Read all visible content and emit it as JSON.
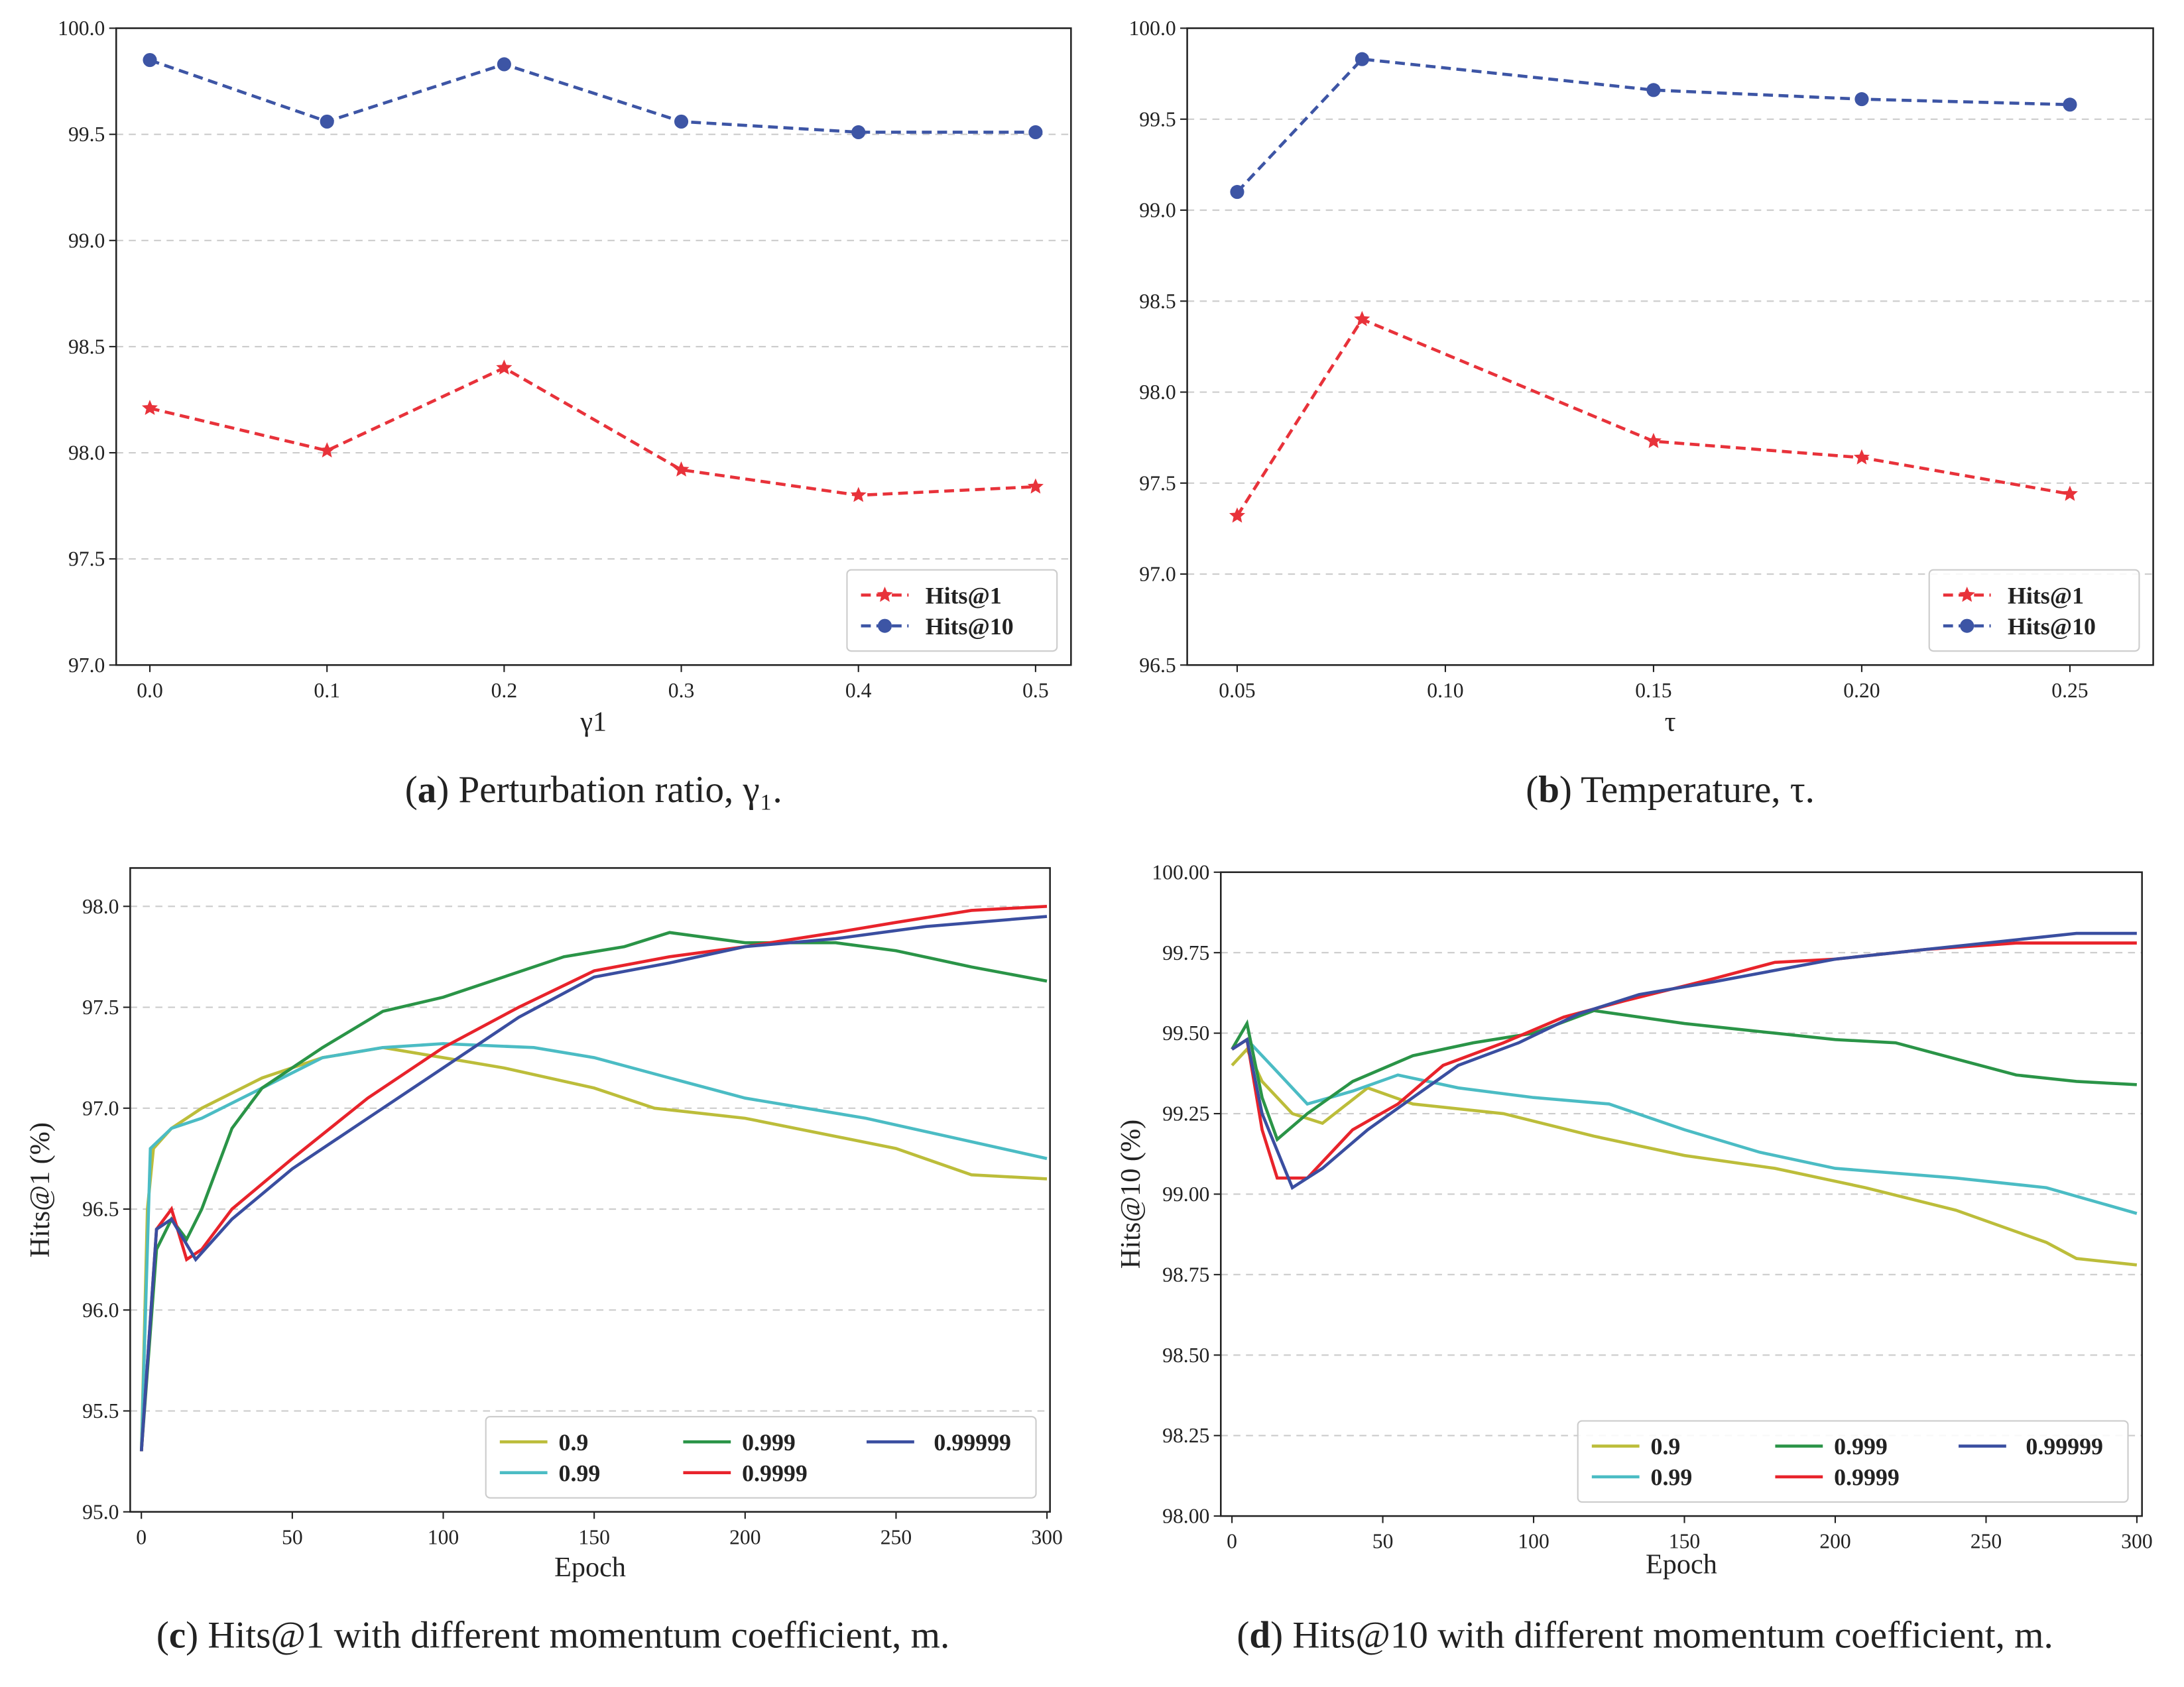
{
  "chart_data": [
    {
      "type": "line",
      "xlabel": "γ1",
      "ylabel": "",
      "ylim": [
        97.0,
        100.0
      ],
      "xlim": [
        -0.019,
        0.52
      ],
      "xticks": [
        "0.0",
        "0.1",
        "0.2",
        "0.3",
        "0.4",
        "0.5"
      ],
      "xtick_values": [
        0,
        0.1,
        0.2,
        0.3,
        0.4,
        0.5
      ],
      "yticks": [
        "97.0",
        "97.5",
        "98.0",
        "98.5",
        "99.0",
        "99.5",
        "100.0"
      ],
      "ytick_values": [
        97,
        97.5,
        98,
        98.5,
        99,
        99.5,
        100
      ],
      "grid": true,
      "legend": "bottom-right",
      "legend_cols": 1,
      "caption_label": "a",
      "caption_text": " Perturbation ratio, γ₁.",
      "series": [
        {
          "name": "Hits@1",
          "color": "#e8323a",
          "marker": "star",
          "dashed": true,
          "x": [
            0,
            0.1,
            0.2,
            0.3,
            0.4,
            0.5
          ],
          "y": [
            98.21,
            98.01,
            98.4,
            97.92,
            97.8,
            97.84
          ]
        },
        {
          "name": "Hits@10",
          "color": "#3d55a5",
          "marker": "circle",
          "dashed": true,
          "x": [
            0,
            0.1,
            0.2,
            0.3,
            0.4,
            0.5
          ],
          "y": [
            99.85,
            99.56,
            99.83,
            99.56,
            99.51,
            99.51
          ]
        }
      ]
    },
    {
      "type": "line",
      "xlabel": "τ",
      "ylabel": "",
      "ylim": [
        96.5,
        100.0
      ],
      "xlim": [
        0.038,
        0.27
      ],
      "xticks": [
        "0.05",
        "0.10",
        "0.15",
        "0.20",
        "0.25"
      ],
      "xtick_values": [
        0.05,
        0.1,
        0.15,
        0.2,
        0.25
      ],
      "yticks": [
        "96.5",
        "97.0",
        "97.5",
        "98.0",
        "98.5",
        "99.0",
        "99.5",
        "100.0"
      ],
      "ytick_values": [
        96.5,
        97,
        97.5,
        98,
        98.5,
        99,
        99.5,
        100
      ],
      "grid": true,
      "legend": "bottom-right",
      "legend_cols": 1,
      "caption_label": "b",
      "caption_text": " Temperature, τ.",
      "series": [
        {
          "name": "Hits@1",
          "color": "#e8323a",
          "marker": "star",
          "dashed": true,
          "x": [
            0.05,
            0.08,
            0.15,
            0.2,
            0.25
          ],
          "y": [
            97.32,
            98.4,
            97.73,
            97.64,
            97.44
          ]
        },
        {
          "name": "Hits@10",
          "color": "#3d55a5",
          "marker": "circle",
          "dashed": true,
          "x": [
            0.05,
            0.08,
            0.15,
            0.2,
            0.25
          ],
          "y": [
            99.1,
            99.83,
            99.66,
            99.61,
            99.58
          ]
        }
      ]
    },
    {
      "type": "line",
      "xlabel": "Epoch",
      "ylabel": "Hits@1 (%)",
      "ylim": [
        95.0,
        98.19
      ],
      "xlim": [
        -3.7,
        301
      ],
      "xticks": [
        "0",
        "50",
        "100",
        "150",
        "200",
        "250",
        "300"
      ],
      "xtick_values": [
        0,
        50,
        100,
        150,
        200,
        250,
        300
      ],
      "yticks": [
        "95.0",
        "95.5",
        "96.0",
        "96.5",
        "97.0",
        "97.5",
        "98.0"
      ],
      "ytick_values": [
        95,
        95.5,
        96,
        96.5,
        97,
        97.5,
        98
      ],
      "grid": true,
      "legend": "bottom-right",
      "legend_cols": 3,
      "caption_label": "c",
      "caption_text": " Hits@1 with different momentum coefficient, m.",
      "series": [
        {
          "name": "0.9",
          "color": "#bcbd3a",
          "x": [
            0,
            2,
            4,
            10,
            20,
            40,
            60,
            80,
            100,
            120,
            150,
            170,
            200,
            250,
            275,
            300
          ],
          "y": [
            95.3,
            96.5,
            96.8,
            96.9,
            97.0,
            97.15,
            97.25,
            97.3,
            97.25,
            97.2,
            97.1,
            97.0,
            96.95,
            96.8,
            96.67,
            96.65
          ]
        },
        {
          "name": "0.99",
          "color": "#4bbcc4",
          "x": [
            0,
            3,
            10,
            20,
            40,
            60,
            80,
            100,
            130,
            150,
            175,
            200,
            240,
            270,
            300
          ],
          "y": [
            95.3,
            96.8,
            96.9,
            96.95,
            97.1,
            97.25,
            97.3,
            97.32,
            97.3,
            97.25,
            97.15,
            97.05,
            96.95,
            96.85,
            96.75
          ]
        },
        {
          "name": "0.999",
          "color": "#2a9447",
          "x": [
            0,
            5,
            10,
            15,
            20,
            30,
            40,
            60,
            80,
            100,
            120,
            140,
            160,
            175,
            200,
            230,
            250,
            275,
            300
          ],
          "y": [
            95.3,
            96.3,
            96.45,
            96.35,
            96.5,
            96.9,
            97.1,
            97.3,
            97.48,
            97.55,
            97.65,
            97.75,
            97.8,
            97.87,
            97.82,
            97.82,
            97.78,
            97.7,
            97.63
          ]
        },
        {
          "name": "0.9999",
          "color": "#e8232b",
          "x": [
            0,
            5,
            10,
            15,
            20,
            30,
            50,
            75,
            100,
            125,
            150,
            175,
            200,
            230,
            250,
            275,
            300
          ],
          "y": [
            95.3,
            96.4,
            96.5,
            96.25,
            96.3,
            96.5,
            96.75,
            97.05,
            97.3,
            97.5,
            97.68,
            97.75,
            97.8,
            97.87,
            97.92,
            97.98,
            98.0
          ]
        },
        {
          "name": "0.99999",
          "color": "#3a4ea0",
          "x": [
            0,
            5,
            10,
            18,
            30,
            50,
            75,
            100,
            125,
            150,
            175,
            200,
            230,
            260,
            300
          ],
          "y": [
            95.3,
            96.4,
            96.45,
            96.25,
            96.45,
            96.7,
            96.95,
            97.2,
            97.45,
            97.65,
            97.72,
            97.8,
            97.84,
            97.9,
            97.95
          ]
        }
      ]
    },
    {
      "type": "line",
      "xlabel": "Epoch",
      "ylabel": "Hits@10 (%)",
      "ylim": [
        98.0,
        100.0
      ],
      "xlim": [
        -3.7,
        301.7
      ],
      "xticks": [
        "0",
        "50",
        "100",
        "150",
        "200",
        "250",
        "300"
      ],
      "xtick_values": [
        0,
        50,
        100,
        150,
        200,
        250,
        300
      ],
      "yticks": [
        "98.00",
        "98.25",
        "98.50",
        "98.75",
        "99.00",
        "99.25",
        "99.50",
        "99.75",
        "100.00"
      ],
      "ytick_values": [
        98,
        98.25,
        98.5,
        98.75,
        99,
        99.25,
        99.5,
        99.75,
        100
      ],
      "grid": true,
      "legend": "bottom-right",
      "legend_cols": 3,
      "caption_label": "d",
      "caption_text": " Hits@10 with different momentum coefficient, m.",
      "series": [
        {
          "name": "0.9",
          "color": "#bcbd3a",
          "x": [
            0,
            5,
            10,
            20,
            30,
            45,
            60,
            90,
            120,
            150,
            180,
            210,
            240,
            270,
            280,
            300
          ],
          "y": [
            99.4,
            99.45,
            99.35,
            99.25,
            99.22,
            99.33,
            99.28,
            99.25,
            99.18,
            99.12,
            99.08,
            99.02,
            98.95,
            98.85,
            98.8,
            98.78
          ]
        },
        {
          "name": "0.99",
          "color": "#4bbcc4",
          "x": [
            0,
            5,
            15,
            25,
            40,
            55,
            75,
            100,
            125,
            150,
            175,
            200,
            240,
            270,
            300
          ],
          "y": [
            99.45,
            99.48,
            99.38,
            99.28,
            99.32,
            99.37,
            99.33,
            99.3,
            99.28,
            99.2,
            99.13,
            99.08,
            99.05,
            99.02,
            98.94
          ]
        },
        {
          "name": "0.999",
          "color": "#2a9447",
          "x": [
            0,
            5,
            10,
            15,
            25,
            40,
            60,
            80,
            100,
            120,
            150,
            180,
            200,
            220,
            240,
            260,
            280,
            300
          ],
          "y": [
            99.45,
            99.53,
            99.3,
            99.17,
            99.25,
            99.35,
            99.43,
            99.47,
            99.5,
            99.57,
            99.53,
            99.5,
            99.48,
            99.47,
            99.42,
            99.37,
            99.35,
            99.34
          ]
        },
        {
          "name": "0.9999",
          "color": "#e8232b",
          "x": [
            0,
            5,
            10,
            15,
            25,
            40,
            55,
            70,
            90,
            110,
            130,
            160,
            180,
            200,
            230,
            260,
            300
          ],
          "y": [
            99.45,
            99.48,
            99.2,
            99.05,
            99.05,
            99.2,
            99.28,
            99.4,
            99.47,
            99.55,
            99.6,
            99.67,
            99.72,
            99.73,
            99.76,
            99.78,
            99.78
          ]
        },
        {
          "name": "0.99999",
          "color": "#3a4ea0",
          "x": [
            0,
            5,
            10,
            20,
            30,
            45,
            60,
            75,
            95,
            115,
            135,
            160,
            200,
            250,
            280,
            300
          ],
          "y": [
            99.45,
            99.48,
            99.25,
            99.02,
            99.08,
            99.2,
            99.3,
            99.4,
            99.47,
            99.56,
            99.62,
            99.66,
            99.73,
            99.78,
            99.81,
            99.81
          ]
        }
      ]
    }
  ]
}
